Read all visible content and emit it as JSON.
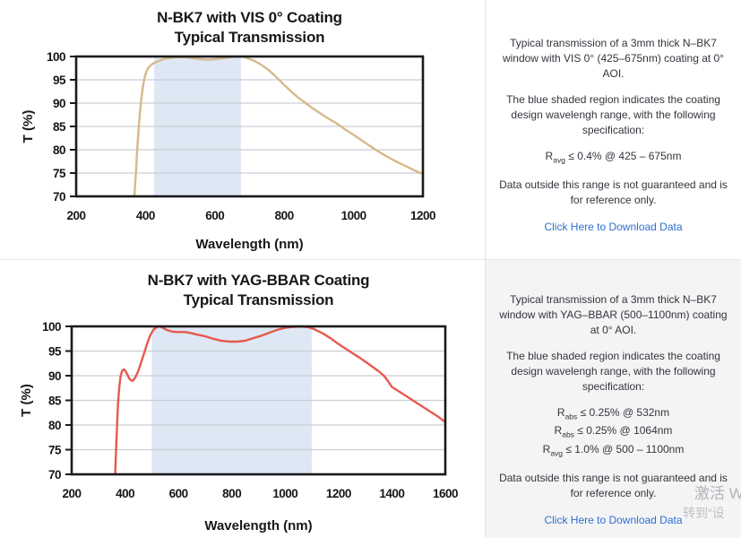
{
  "colors": {
    "link": "#2e6fd0",
    "grid": "#cbced3",
    "plot_border": "#1a1a1a",
    "tick_text": "#17171a"
  },
  "sections": [
    {
      "chart_data": {
        "type": "line",
        "title_line1": "N-BK7 with VIS 0° Coating",
        "title_line2": "Typical Transmission",
        "xlabel": "Wavelength (nm)",
        "ylabel": "T (%)",
        "xlim": [
          200,
          1200
        ],
        "xticks": [
          200,
          400,
          600,
          800,
          1000,
          1200
        ],
        "ylim": [
          70,
          100
        ],
        "yticks": [
          70,
          75,
          80,
          85,
          90,
          95,
          100
        ],
        "grid": true,
        "legend": false,
        "design_range_nm": [
          425,
          675
        ],
        "line_color": "#d6b98b",
        "shade_color": "#dde8f4",
        "series": [
          {
            "name": "N-BK7 with VIS 0° coating — typical transmission (%)",
            "points": [
              [
                368,
                70
              ],
              [
                370,
                72.5
              ],
              [
                373,
                76
              ],
              [
                376,
                80
              ],
              [
                380,
                84.5
              ],
              [
                384,
                88
              ],
              [
                388,
                91
              ],
              [
                392,
                93.3
              ],
              [
                396,
                95
              ],
              [
                400,
                96.2
              ],
              [
                406,
                97.3
              ],
              [
                412,
                97.9
              ],
              [
                420,
                98.4
              ],
              [
                430,
                98.8
              ],
              [
                440,
                99.1
              ],
              [
                455,
                99.5
              ],
              [
                470,
                99.7
              ],
              [
                490,
                99.85
              ],
              [
                510,
                99.85
              ],
              [
                530,
                99.7
              ],
              [
                550,
                99.5
              ],
              [
                570,
                99.35
              ],
              [
                590,
                99.35
              ],
              [
                610,
                99.5
              ],
              [
                630,
                99.7
              ],
              [
                650,
                99.9
              ],
              [
                665,
                100
              ],
              [
                680,
                100
              ],
              [
                695,
                99.6
              ],
              [
                710,
                99.2
              ],
              [
                725,
                98.6
              ],
              [
                740,
                97.9
              ],
              [
                755,
                97.1
              ],
              [
                770,
                96.1
              ],
              [
                785,
                95
              ],
              [
                800,
                93.9
              ],
              [
                820,
                92.5
              ],
              [
                840,
                91.2
              ],
              [
                860,
                90.1
              ],
              [
                880,
                89
              ],
              [
                900,
                88
              ],
              [
                925,
                86.8
              ],
              [
                950,
                85.7
              ],
              [
                975,
                84.4
              ],
              [
                1000,
                83.2
              ],
              [
                1030,
                81.7
              ],
              [
                1060,
                80.2
              ],
              [
                1090,
                78.8
              ],
              [
                1120,
                77.6
              ],
              [
                1150,
                76.5
              ],
              [
                1175,
                75.6
              ],
              [
                1200,
                74.8
              ]
            ]
          }
        ]
      },
      "panel": {
        "paragraph1": "Typical transmission of a 3mm thick N–BK7 window with VIS 0° (425–675nm) coating at 0° AOI.",
        "paragraph2": "The blue shaded region indicates the coating design wavelengh range, with the following specification:",
        "specs": [
          {
            "base": "R",
            "sub": "avg",
            "rest": "≤ 0.4% @ 425 – 675nm"
          }
        ],
        "paragraph3": "Data outside this range is not guaranteed and is for reference only.",
        "link_label": "Click Here to Download Data"
      }
    },
    {
      "chart_data": {
        "type": "line",
        "title_line1": "N-BK7 with YAG-BBAR Coating",
        "title_line2": "Typical Transmission",
        "xlabel": "Wavelength (nm)",
        "ylabel": "T (%)",
        "xlim": [
          200,
          1600
        ],
        "xticks": [
          200,
          400,
          600,
          800,
          1000,
          1200,
          1400,
          1600
        ],
        "ylim": [
          70,
          100
        ],
        "yticks": [
          70,
          75,
          80,
          85,
          90,
          95,
          100
        ],
        "grid": true,
        "legend": false,
        "design_range_nm": [
          500,
          1100
        ],
        "line_color": "#e8584e",
        "shade_color": "#dde8f4",
        "series": [
          {
            "name": "N-BK7 with YAG-BBAR coating — typical transmission (%)",
            "points": [
              [
                363,
                70
              ],
              [
                365,
                73
              ],
              [
                368,
                77
              ],
              [
                371,
                81
              ],
              [
                374,
                84.5
              ],
              [
                378,
                87.5
              ],
              [
                383,
                89.8
              ],
              [
                389,
                91
              ],
              [
                395,
                91.3
              ],
              [
                401,
                91
              ],
              [
                408,
                90.3
              ],
              [
                416,
                89.4
              ],
              [
                424,
                89
              ],
              [
                430,
                89
              ],
              [
                438,
                89.6
              ],
              [
                448,
                90.8
              ],
              [
                458,
                92.3
              ],
              [
                470,
                94.3
              ],
              [
                482,
                96.4
              ],
              [
                495,
                98.3
              ],
              [
                508,
                99.4
              ],
              [
                520,
                99.9
              ],
              [
                532,
                100
              ],
              [
                545,
                99.6
              ],
              [
                560,
                99.2
              ],
              [
                580,
                98.9
              ],
              [
                600,
                98.85
              ],
              [
                625,
                98.85
              ],
              [
                650,
                98.6
              ],
              [
                675,
                98.3
              ],
              [
                700,
                98
              ],
              [
                730,
                97.5
              ],
              [
                760,
                97.1
              ],
              [
                790,
                96.9
              ],
              [
                820,
                96.9
              ],
              [
                850,
                97.1
              ],
              [
                880,
                97.6
              ],
              [
                910,
                98.1
              ],
              [
                940,
                98.7
              ],
              [
                970,
                99.3
              ],
              [
                1000,
                99.7
              ],
              [
                1030,
                99.9
              ],
              [
                1060,
                100
              ],
              [
                1090,
                99.8
              ],
              [
                1110,
                99.4
              ],
              [
                1140,
                98.6
              ],
              [
                1170,
                97.6
              ],
              [
                1200,
                96.4
              ],
              [
                1240,
                95
              ],
              [
                1280,
                93.6
              ],
              [
                1320,
                92.1
              ],
              [
                1350,
                90.9
              ],
              [
                1370,
                90
              ],
              [
                1385,
                88.9
              ],
              [
                1400,
                87.7
              ],
              [
                1415,
                87.2
              ],
              [
                1450,
                86
              ],
              [
                1490,
                84.6
              ],
              [
                1530,
                83.2
              ],
              [
                1570,
                81.8
              ],
              [
                1600,
                80.6
              ]
            ]
          }
        ]
      },
      "panel": {
        "paragraph1": "Typical transmission of a 3mm thick N–BK7 window with YAG–BBAR (500–1100nm) coating at 0° AOI.",
        "paragraph2": "The blue shaded region indicates the coating design wavelengh range, with the following specification:",
        "specs": [
          {
            "base": "R",
            "sub": "abs",
            "rest": "≤ 0.25% @ 532nm"
          },
          {
            "base": "R",
            "sub": "abs",
            "rest": "≤ 0.25% @ 1064nm"
          },
          {
            "base": "R",
            "sub": "avg",
            "rest": "≤ 1.0% @ 500 – 1100nm"
          }
        ],
        "paragraph3": "Data outside this range is not guaranteed and is for reference only.",
        "link_label": "Click Here to Download Data"
      }
    }
  ],
  "watermark": {
    "line1": "激活 W",
    "line2": "转到“设"
  }
}
